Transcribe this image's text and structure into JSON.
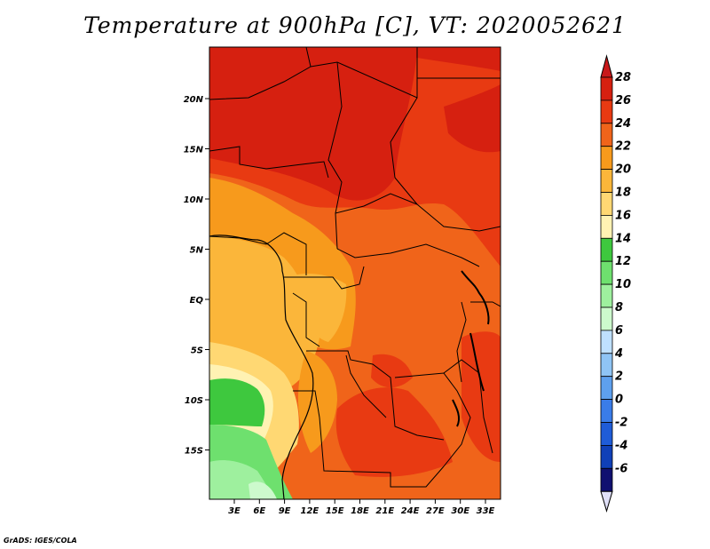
{
  "title": "Temperature at 900hPa [C], VT: 2020052621",
  "credit": "GrADS: IGES/COLA",
  "map": {
    "lon_labels": [
      "3E",
      "6E",
      "9E",
      "12E",
      "15E",
      "18E",
      "21E",
      "24E",
      "27E",
      "30E",
      "33E"
    ],
    "lat_labels": [
      "20N",
      "15N",
      "10N",
      "5N",
      "EQ",
      "5S",
      "10S",
      "15S"
    ]
  },
  "colorbar": {
    "labels": [
      "28",
      "26",
      "24",
      "22",
      "20",
      "18",
      "16",
      "14",
      "12",
      "10",
      "8",
      "6",
      "4",
      "2",
      "0",
      "-2",
      "-4",
      "-6"
    ],
    "colors": [
      "#d62010",
      "#e83a12",
      "#f0641a",
      "#f79a1c",
      "#fbb63a",
      "#ffd873",
      "#fff2b3",
      "#3ec83e",
      "#6ee06e",
      "#9ef09e",
      "#cdfacd",
      "#bfe0ff",
      "#8fc4f5",
      "#5ea0ee",
      "#3a7ce8",
      "#1f5cd8",
      "#1040b8",
      "#101070"
    ],
    "top_arrow_color": "#c8181a",
    "bottom_arrow_color": "#e0e0f8"
  }
}
